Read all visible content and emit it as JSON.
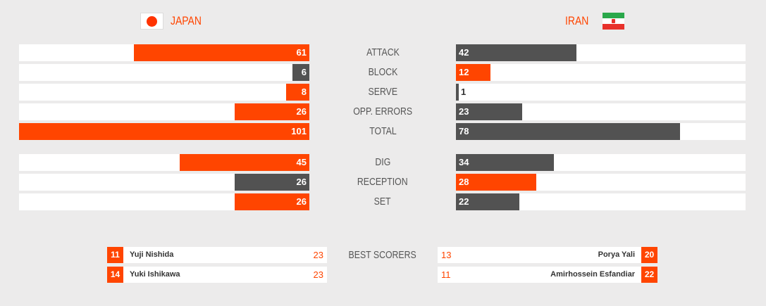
{
  "teams": {
    "left": {
      "name": "JAPAN",
      "flag_icon": "japan-flag-icon"
    },
    "right": {
      "name": "IRAN",
      "flag_icon": "iran-flag-icon"
    }
  },
  "colors": {
    "accent": "#ff4500",
    "neutral": "#525252",
    "track": "#ffffff",
    "background": "#ecebeb"
  },
  "scale_max": 101,
  "stats": [
    {
      "label": "ATTACK",
      "left": 61,
      "right": 42,
      "leader": "left"
    },
    {
      "label": "BLOCK",
      "left": 6,
      "right": 12,
      "leader": "right"
    },
    {
      "label": "SERVE",
      "left": 8,
      "right": 1,
      "leader": "left"
    },
    {
      "label": "OPP. ERRORS",
      "left": 26,
      "right": 23,
      "leader": "left"
    },
    {
      "label": "TOTAL",
      "left": 101,
      "right": 78,
      "leader": "left"
    },
    {
      "label": "DIG",
      "left": 45,
      "right": 34,
      "leader": "left"
    },
    {
      "label": "RECEPTION",
      "left": 26,
      "right": 28,
      "leader": "right"
    },
    {
      "label": "SET",
      "left": 26,
      "right": 22,
      "leader": "left"
    }
  ],
  "best_scorers": {
    "label": "BEST SCORERS",
    "left": [
      {
        "number": "11",
        "name": "Yuji Nishida",
        "points": "23"
      },
      {
        "number": "14",
        "name": "Yuki Ishikawa",
        "points": "23"
      }
    ],
    "right": [
      {
        "number": "20",
        "name": "Porya Yali",
        "points": "13"
      },
      {
        "number": "22",
        "name": "Amirhossein Esfandiar",
        "points": "11"
      }
    ]
  }
}
